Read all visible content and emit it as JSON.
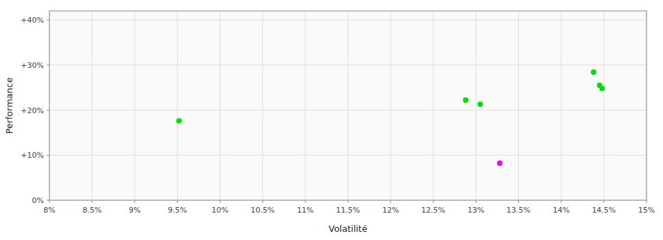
{
  "chart_data": {
    "type": "scatter",
    "xlabel": "Volatilité",
    "ylabel": "Performance",
    "x": [
      0.0952,
      0.1288,
      0.1305,
      0.1438,
      0.1445,
      0.1448,
      0.1328
    ],
    "values": [
      0.176,
      0.222,
      0.213,
      0.284,
      0.255,
      0.248,
      0.082
    ],
    "colors": [
      "#00dd00",
      "#00dd00",
      "#00dd00",
      "#00dd00",
      "#00dd00",
      "#00dd00",
      "#ee00ee"
    ],
    "xlim": [
      0.08,
      0.15
    ],
    "ylim": [
      0.0,
      0.42
    ],
    "xticks": [
      {
        "value": 0.08,
        "label": "8%"
      },
      {
        "value": 0.085,
        "label": "8.5%"
      },
      {
        "value": 0.09,
        "label": "9%"
      },
      {
        "value": 0.095,
        "label": "9.5%"
      },
      {
        "value": 0.1,
        "label": "10%"
      },
      {
        "value": 0.105,
        "label": "10.5%"
      },
      {
        "value": 0.11,
        "label": "11%"
      },
      {
        "value": 0.115,
        "label": "11.5%"
      },
      {
        "value": 0.12,
        "label": "12%"
      },
      {
        "value": 0.125,
        "label": "12.5%"
      },
      {
        "value": 0.13,
        "label": "13%"
      },
      {
        "value": 0.135,
        "label": "13.5%"
      },
      {
        "value": 0.14,
        "label": "14%"
      },
      {
        "value": 0.145,
        "label": "14.5%"
      },
      {
        "value": 0.15,
        "label": "15%"
      }
    ],
    "yticks": [
      {
        "value": 0.0,
        "label": "0%"
      },
      {
        "value": 0.1,
        "label": "+10%"
      },
      {
        "value": 0.2,
        "label": "+20%"
      },
      {
        "value": 0.3,
        "label": "+30%"
      },
      {
        "value": 0.4,
        "label": "+40%"
      }
    ],
    "grid": true
  }
}
